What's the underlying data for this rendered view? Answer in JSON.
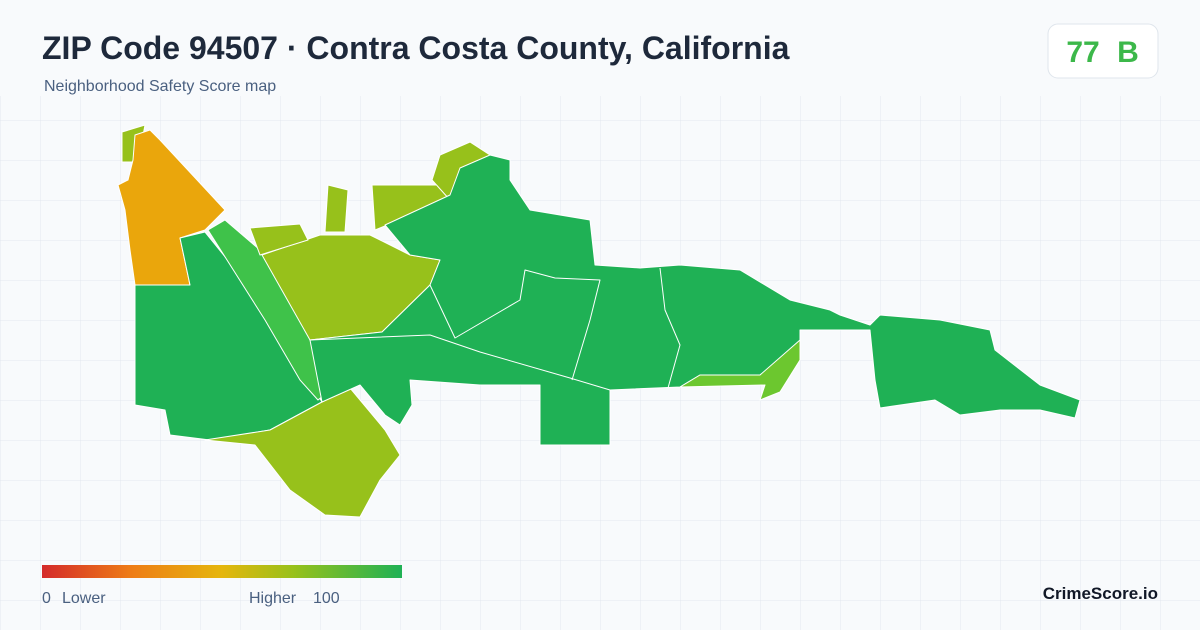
{
  "header": {
    "title": "ZIP Code 94507 · Contra Costa County, California",
    "subtitle": "Neighborhood Safety Score map"
  },
  "score": {
    "value": 77,
    "grade": "B"
  },
  "legend": {
    "min": 0,
    "min_label": "Lower",
    "max_label": "Higher",
    "max": 100
  },
  "footer": {
    "brand": "CrimeScore.io"
  }
}
